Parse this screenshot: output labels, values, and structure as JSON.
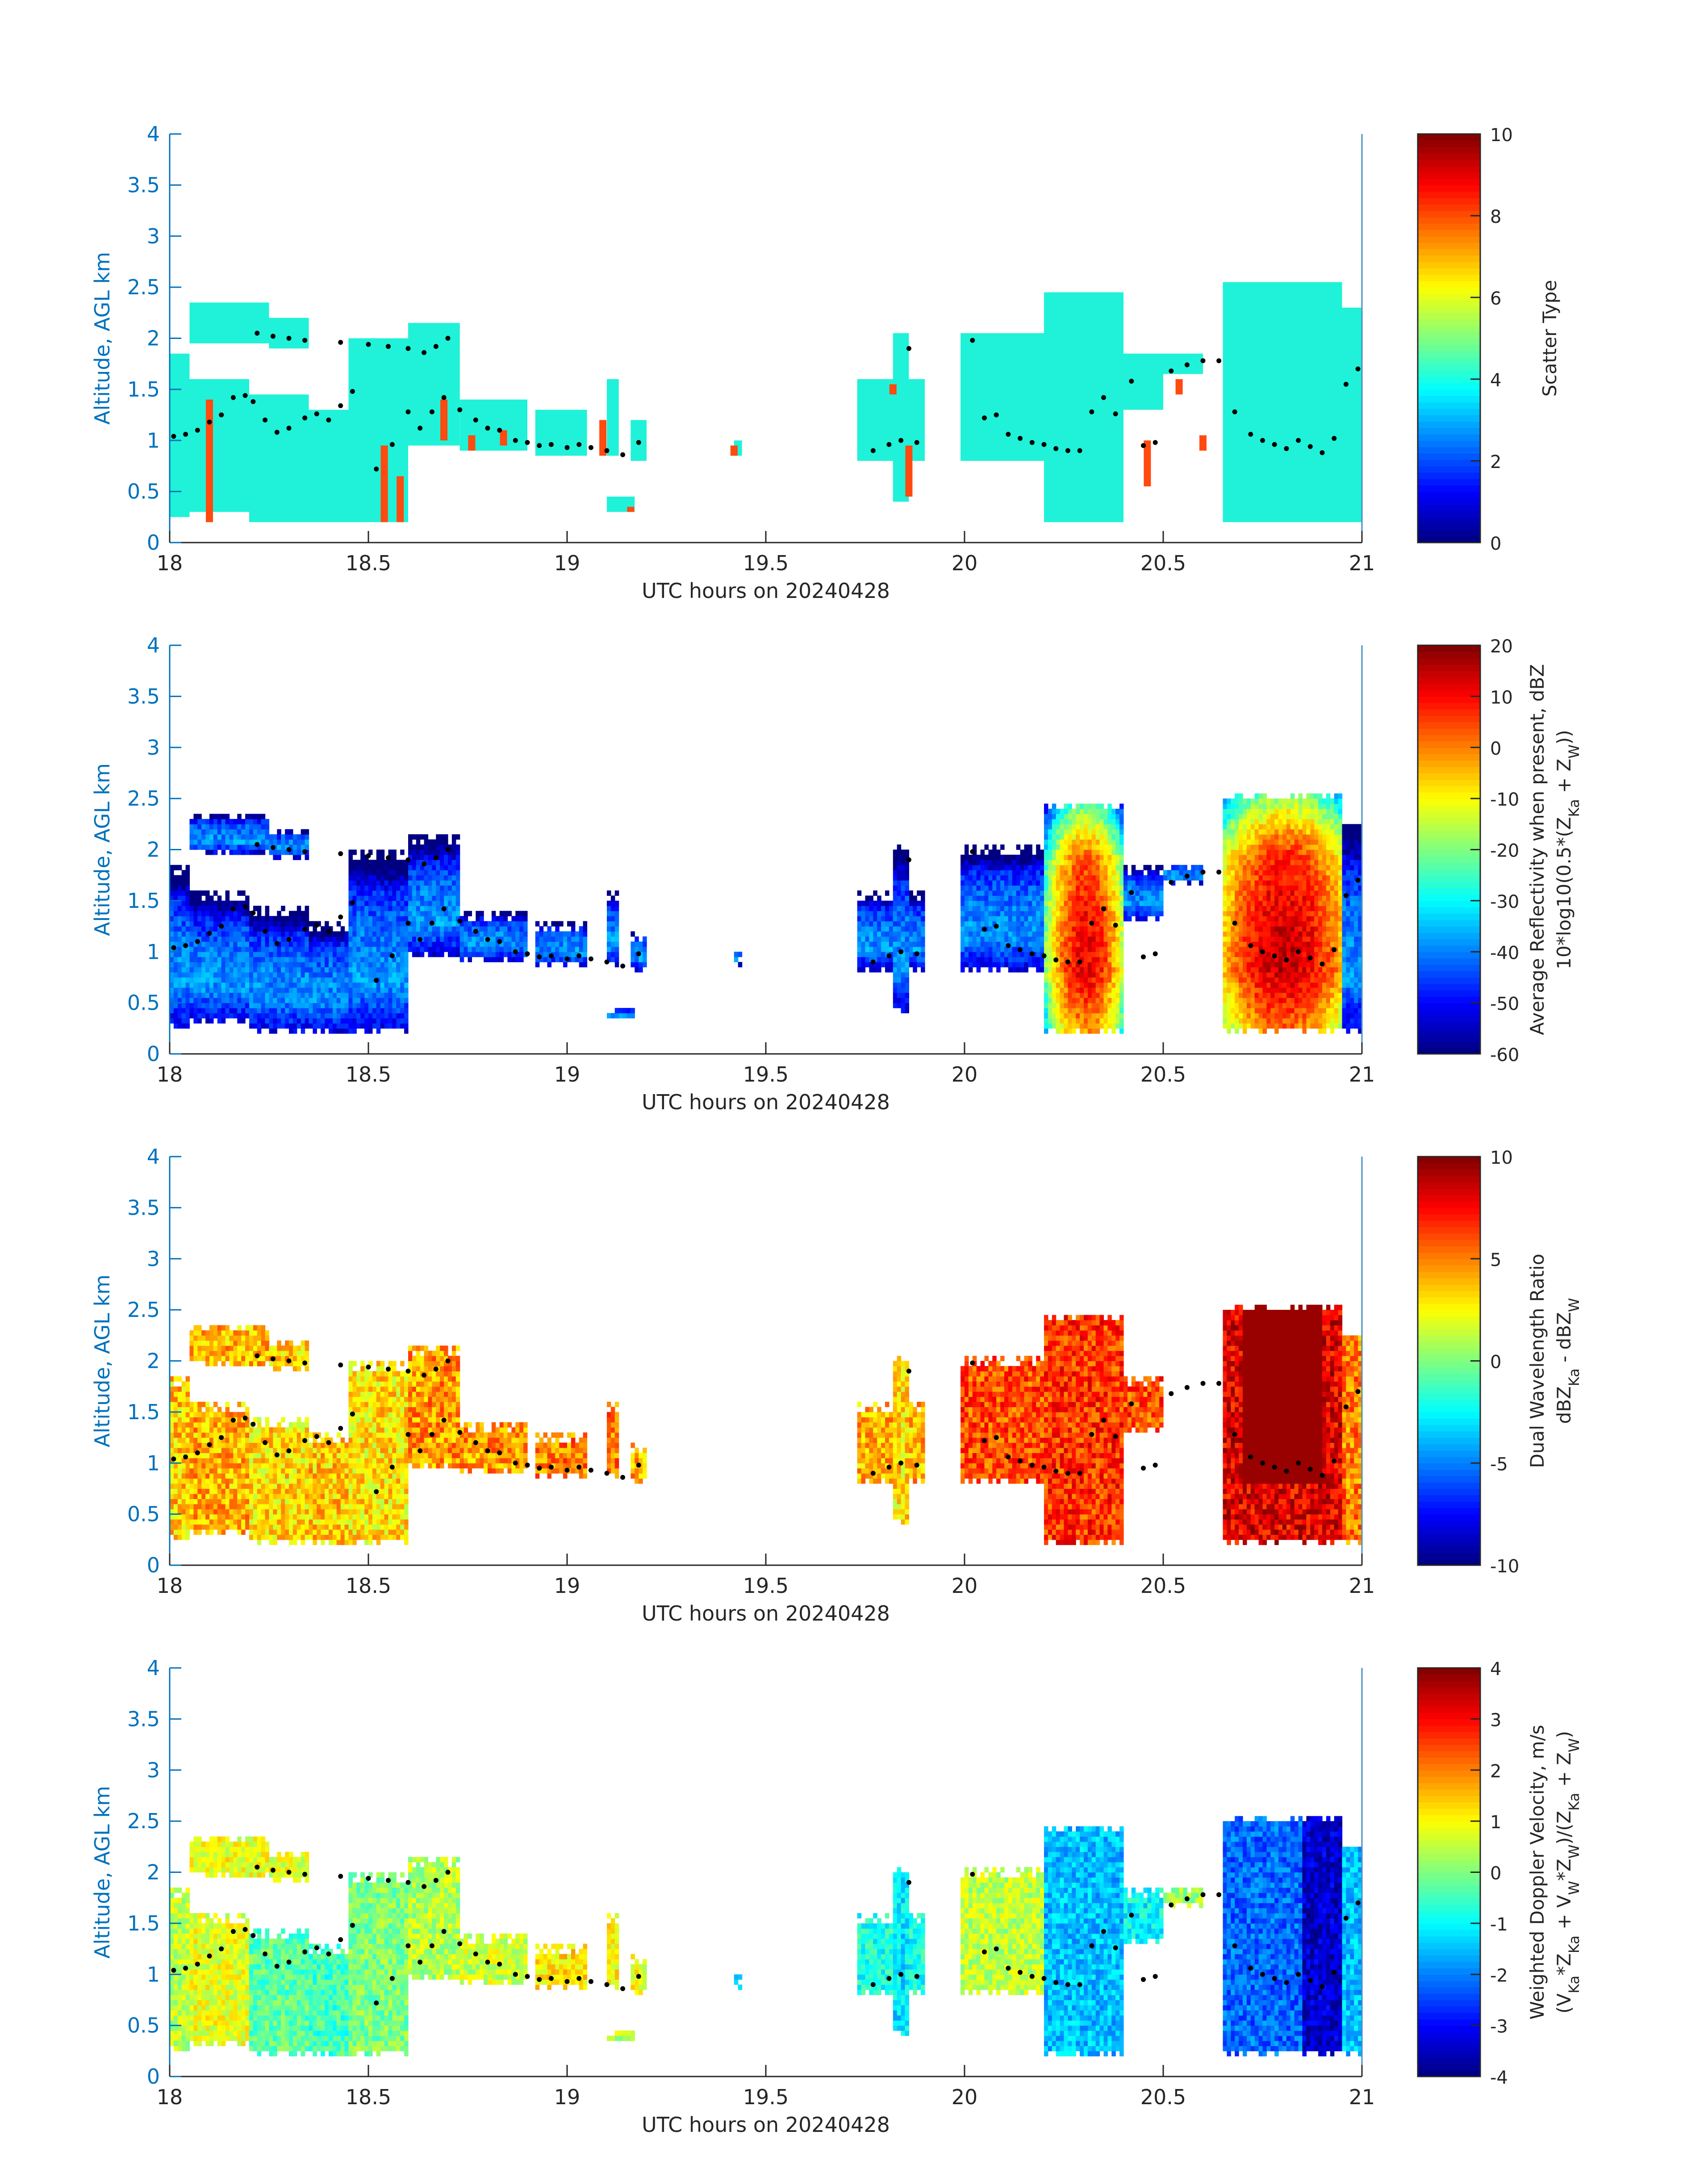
{
  "figure": {
    "colors": {
      "axis_blue": "#0072bd",
      "text_dark": "#262626",
      "frame_blue": "#4a8fc0",
      "scatter_cyan": "#1ff2d8",
      "scatter_orange": "#ff4a10",
      "dot_color": "#000000"
    }
  },
  "chart_data": [
    {
      "type": "heatmap",
      "xlabel": "UTC hours on 20240428",
      "ylabel": "Altitude, AGL km",
      "xlim": [
        18,
        21
      ],
      "ylim": [
        0,
        4
      ],
      "xticks": [
        "18",
        "18.5",
        "19",
        "19.5",
        "20",
        "20.5",
        "21"
      ],
      "yticks": [
        "0",
        "0.5",
        "1",
        "1.5",
        "2",
        "2.5",
        "3",
        "3.5",
        "4"
      ],
      "colorbar": {
        "label_lines": [
          "Scatter Type"
        ],
        "clim": [
          0,
          10
        ],
        "ticks": [
          "0",
          "2",
          "4",
          "6",
          "8",
          "10"
        ]
      },
      "field": "scatter"
    },
    {
      "type": "heatmap",
      "xlabel": "UTC hours on 20240428",
      "ylabel": "Altitude, AGL km",
      "xlim": [
        18,
        21
      ],
      "ylim": [
        0,
        4
      ],
      "xticks": [
        "18",
        "18.5",
        "19",
        "19.5",
        "20",
        "20.5",
        "21"
      ],
      "yticks": [
        "0",
        "0.5",
        "1",
        "1.5",
        "2",
        "2.5",
        "3",
        "3.5",
        "4"
      ],
      "colorbar": {
        "label_lines": [
          "Average Reflectivity when present, dBZ",
          "10*log10(0.5*(Z_Ka + Z_W))"
        ],
        "clim": [
          -60,
          20
        ],
        "ticks": [
          "-60",
          "-50",
          "-40",
          "-30",
          "-20",
          "-10",
          "0",
          "10",
          "20"
        ]
      },
      "field": "refl"
    },
    {
      "type": "heatmap",
      "xlabel": "UTC hours on 20240428",
      "ylabel": "Altitude, AGL km",
      "xlim": [
        18,
        21
      ],
      "ylim": [
        0,
        4
      ],
      "xticks": [
        "18",
        "18.5",
        "19",
        "19.5",
        "20",
        "20.5",
        "21"
      ],
      "yticks": [
        "0",
        "0.5",
        "1",
        "1.5",
        "2",
        "2.5",
        "3",
        "3.5",
        "4"
      ],
      "colorbar": {
        "label_lines": [
          "Dual Wavelength Ratio",
          "dBZ_Ka - dBZ_W"
        ],
        "clim": [
          -10,
          10
        ],
        "ticks": [
          "-10",
          "-5",
          "0",
          "5",
          "10"
        ]
      },
      "field": "dwr"
    },
    {
      "type": "heatmap",
      "xlabel": "UTC hours on 20240428",
      "ylabel": "Altitude, AGL km",
      "xlim": [
        18,
        21
      ],
      "ylim": [
        0,
        4
      ],
      "xticks": [
        "18",
        "18.5",
        "19",
        "19.5",
        "20",
        "20.5",
        "21"
      ],
      "yticks": [
        "0",
        "0.5",
        "1",
        "1.5",
        "2",
        "2.5",
        "3",
        "3.5",
        "4"
      ],
      "colorbar": {
        "label_lines": [
          "Weighted Doppler Velocity, m/s",
          "(V_Ka*Z_Ka + V_W*Z_W)/(Z_Ka + Z_W)"
        ],
        "clim": [
          -4,
          4
        ],
        "ticks": [
          "-4",
          "-3",
          "-2",
          "-1",
          "0",
          "1",
          "2",
          "3",
          "4"
        ]
      },
      "field": "vel"
    }
  ],
  "cloud_segments": [
    {
      "t0": 18.0,
      "t1": 18.05,
      "z0": 0.25,
      "z1": 1.85,
      "dwr": 3.5,
      "vel": 0.5
    },
    {
      "t0": 18.05,
      "t1": 18.2,
      "z0": 0.3,
      "z1": 1.6,
      "dwr": 4.0,
      "vel": 0.8
    },
    {
      "t0": 18.05,
      "t1": 18.25,
      "z0": 1.95,
      "z1": 2.35,
      "dwr": 4.0,
      "vel": 0.9
    },
    {
      "t0": 18.2,
      "t1": 18.35,
      "z0": 0.2,
      "z1": 1.45,
      "dwr": 3.0,
      "vel": -0.3
    },
    {
      "t0": 18.25,
      "t1": 18.35,
      "z0": 1.9,
      "z1": 2.2,
      "dwr": 3.5,
      "vel": 0.8
    },
    {
      "t0": 18.35,
      "t1": 18.45,
      "z0": 0.2,
      "z1": 1.3,
      "dwr": 3.5,
      "vel": -0.5
    },
    {
      "t0": 18.45,
      "t1": 18.6,
      "z0": 0.2,
      "z1": 2.0,
      "dwr": 3.0,
      "vel": 0.0
    },
    {
      "t0": 18.6,
      "t1": 18.73,
      "z0": 0.95,
      "z1": 2.15,
      "dwr": 4.5,
      "vel": 0.4
    },
    {
      "t0": 18.73,
      "t1": 18.9,
      "z0": 0.9,
      "z1": 1.4,
      "dwr": 4.5,
      "vel": 0.6
    },
    {
      "t0": 18.92,
      "t1": 19.05,
      "z0": 0.85,
      "z1": 1.3,
      "dwr": 5.0,
      "vel": 1.2
    },
    {
      "t0": 19.1,
      "t1": 19.13,
      "z0": 0.85,
      "z1": 1.6,
      "dwr": 5.0,
      "vel": 1.0
    },
    {
      "t0": 19.16,
      "t1": 19.2,
      "z0": 0.8,
      "z1": 1.2,
      "dwr": 4.0,
      "vel": 0.9
    },
    {
      "t0": 19.1,
      "t1": 19.17,
      "z0": 0.3,
      "z1": 0.45,
      "dwr": null,
      "vel": 0.5
    },
    {
      "t0": 19.42,
      "t1": 19.44,
      "z0": 0.85,
      "z1": 1.0,
      "dwr": null,
      "vel": -1.0
    },
    {
      "t0": 19.73,
      "t1": 19.9,
      "z0": 0.8,
      "z1": 1.6,
      "dwr": 4.0,
      "vel": -0.8
    },
    {
      "t0": 19.82,
      "t1": 19.86,
      "z0": 0.4,
      "z1": 2.05,
      "dwr": 3.0,
      "vel": -1.2
    },
    {
      "t0": 19.99,
      "t1": 20.2,
      "z0": 0.8,
      "z1": 2.05,
      "dwr": 6.0,
      "vel": 0.5
    },
    {
      "t0": 20.2,
      "t1": 20.4,
      "z0": 0.2,
      "z1": 2.45,
      "dwr": 6.5,
      "vel": -1.5
    },
    {
      "t0": 20.4,
      "t1": 20.5,
      "z0": 1.3,
      "z1": 1.85,
      "dwr": 6.0,
      "vel": -1.0
    },
    {
      "t0": 20.5,
      "t1": 20.6,
      "z0": 1.65,
      "z1": 1.85,
      "dwr": null,
      "vel": 0.3
    },
    {
      "t0": 20.65,
      "t1": 20.95,
      "z0": 0.2,
      "z1": 2.55,
      "dwr": 8.0,
      "vel": -2.2
    },
    {
      "t0": 20.95,
      "t1": 21.0,
      "z0": 0.2,
      "z1": 2.3,
      "dwr": 5.0,
      "vel": -1.5
    }
  ],
  "rain_columns": [
    {
      "t": 18.1,
      "z0": 0.2,
      "z1": 1.4
    },
    {
      "t": 18.54,
      "z0": 0.2,
      "z1": 0.95
    },
    {
      "t": 18.58,
      "z0": 0.2,
      "z1": 0.65
    },
    {
      "t": 18.69,
      "z0": 1.0,
      "z1": 1.4
    },
    {
      "t": 18.76,
      "z0": 0.9,
      "z1": 1.05
    },
    {
      "t": 18.84,
      "z0": 0.95,
      "z1": 1.1
    },
    {
      "t": 19.09,
      "z0": 0.85,
      "z1": 1.2
    },
    {
      "t": 19.16,
      "z0": 0.3,
      "z1": 0.35
    },
    {
      "t": 19.42,
      "z0": 0.85,
      "z1": 0.95
    },
    {
      "t": 19.82,
      "z0": 1.45,
      "z1": 1.55
    },
    {
      "t": 19.86,
      "z0": 0.45,
      "z1": 0.95
    },
    {
      "t": 20.46,
      "z0": 0.55,
      "z1": 1.0
    },
    {
      "t": 20.54,
      "z0": 1.45,
      "z1": 1.6
    },
    {
      "t": 20.6,
      "z0": 0.9,
      "z1": 1.05
    }
  ],
  "cloud_base_dots": [
    [
      18.01,
      1.04
    ],
    [
      18.04,
      1.06
    ],
    [
      18.07,
      1.1
    ],
    [
      18.1,
      1.18
    ],
    [
      18.13,
      1.25
    ],
    [
      18.16,
      1.42
    ],
    [
      18.19,
      1.44
    ],
    [
      18.21,
      1.38
    ],
    [
      18.24,
      1.2
    ],
    [
      18.27,
      1.08
    ],
    [
      18.3,
      1.12
    ],
    [
      18.34,
      1.22
    ],
    [
      18.37,
      1.26
    ],
    [
      18.4,
      1.2
    ],
    [
      18.43,
      1.34
    ],
    [
      18.46,
      1.48
    ],
    [
      18.52,
      0.72
    ],
    [
      18.56,
      0.96
    ],
    [
      18.6,
      1.28
    ],
    [
      18.63,
      1.12
    ],
    [
      18.66,
      1.28
    ],
    [
      18.69,
      1.42
    ],
    [
      18.73,
      1.3
    ],
    [
      18.77,
      1.2
    ],
    [
      18.8,
      1.12
    ],
    [
      18.83,
      1.1
    ],
    [
      18.87,
      1.0
    ],
    [
      18.9,
      0.98
    ],
    [
      18.93,
      0.95
    ],
    [
      18.96,
      0.96
    ],
    [
      19.0,
      0.93
    ],
    [
      19.03,
      0.96
    ],
    [
      19.06,
      0.93
    ],
    [
      19.1,
      0.9
    ],
    [
      19.14,
      0.86
    ],
    [
      19.18,
      0.98
    ],
    [
      18.22,
      2.05
    ],
    [
      18.26,
      2.02
    ],
    [
      18.3,
      2.0
    ],
    [
      18.34,
      1.98
    ],
    [
      18.43,
      1.96
    ],
    [
      18.5,
      1.94
    ],
    [
      18.55,
      1.92
    ],
    [
      18.6,
      1.9
    ],
    [
      18.64,
      1.86
    ],
    [
      18.67,
      1.92
    ],
    [
      18.7,
      2.0
    ],
    [
      19.77,
      0.9
    ],
    [
      19.81,
      0.96
    ],
    [
      19.84,
      1.0
    ],
    [
      19.88,
      0.98
    ],
    [
      19.86,
      1.9
    ],
    [
      20.02,
      1.98
    ],
    [
      20.05,
      1.22
    ],
    [
      20.08,
      1.25
    ],
    [
      20.11,
      1.06
    ],
    [
      20.14,
      1.02
    ],
    [
      20.17,
      0.98
    ],
    [
      20.2,
      0.96
    ],
    [
      20.23,
      0.92
    ],
    [
      20.26,
      0.9
    ],
    [
      20.29,
      0.9
    ],
    [
      20.32,
      1.28
    ],
    [
      20.35,
      1.42
    ],
    [
      20.38,
      1.26
    ],
    [
      20.42,
      1.58
    ],
    [
      20.45,
      0.95
    ],
    [
      20.48,
      0.98
    ],
    [
      20.52,
      1.68
    ],
    [
      20.56,
      1.74
    ],
    [
      20.6,
      1.78
    ],
    [
      20.64,
      1.78
    ],
    [
      20.68,
      1.28
    ],
    [
      20.72,
      1.06
    ],
    [
      20.75,
      1.0
    ],
    [
      20.78,
      0.96
    ],
    [
      20.81,
      0.92
    ],
    [
      20.84,
      1.0
    ],
    [
      20.87,
      0.94
    ],
    [
      20.9,
      0.88
    ],
    [
      20.93,
      1.02
    ],
    [
      20.96,
      1.55
    ],
    [
      20.99,
      1.7
    ]
  ]
}
